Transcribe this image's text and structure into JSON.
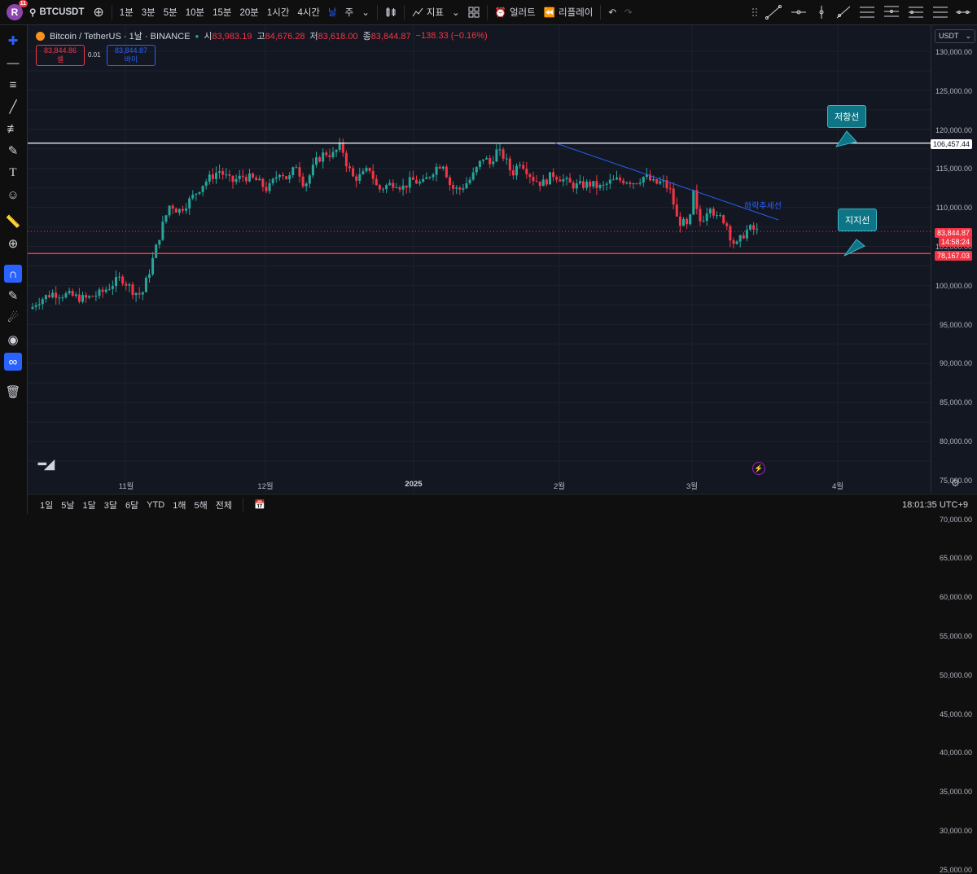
{
  "header": {
    "avatar_letter": "R",
    "avatar_badge": "11",
    "symbol": "BTCUSDT",
    "intervals": [
      "1분",
      "3분",
      "5분",
      "10분",
      "15분",
      "20분",
      "1시간",
      "4시간",
      "날",
      "주"
    ],
    "active_interval": "날",
    "indicators_label": "지표",
    "alert_label": "얼러트",
    "replay_label": "리플레이"
  },
  "legend": {
    "title": "Bitcoin / TetherUS · 1날 · BINANCE",
    "open_label": "시",
    "open": "83,983.19",
    "high_label": "고",
    "high": "84,676.28",
    "low_label": "저",
    "low": "83,618.00",
    "close_label": "종",
    "close": "83,844.87",
    "change": "−138.33 (−0.16%)"
  },
  "trade": {
    "sell_price": "83,844.86",
    "sell_label": "셀",
    "spread": "0.01",
    "buy_price": "83,844.87",
    "buy_label": "바이"
  },
  "axis": {
    "currency": "USDT",
    "ticks": [
      "130,000.00",
      "125,000.00",
      "120,000.00",
      "115,000.00",
      "110,000.00",
      "105,000.00",
      "100,000.00",
      "95,000.00",
      "90,000.00",
      "85,000.00",
      "80,000.00",
      "75,000.00",
      "70,000.00",
      "65,000.00",
      "60,000.00",
      "55,000.00",
      "50,000.00",
      "45,000.00",
      "40,000.00",
      "35,000.00",
      "30,000.00",
      "25,000.00"
    ],
    "resistance_tag": "106,457.44",
    "current_price_tag": "83,844.87",
    "countdown_tag": "14:58:24",
    "support_tag": "78,167.03"
  },
  "x_axis": {
    "ticks": [
      "11월",
      "12월",
      "2025",
      "2월",
      "3월",
      "4월"
    ]
  },
  "annotations": {
    "resistance_label": "저항선",
    "support_label": "지지선",
    "trend_label": "하락추세선"
  },
  "bottom": {
    "ranges": [
      "1일",
      "5날",
      "1달",
      "3달",
      "6달",
      "YTD",
      "1해",
      "5해",
      "전체"
    ],
    "clock": "18:01:35 UTC+9"
  },
  "colors": {
    "up": "#26a69a",
    "down": "#f23645",
    "resistance": "#ffffff",
    "support": "#f23645",
    "trend": "#2962ff"
  }
}
